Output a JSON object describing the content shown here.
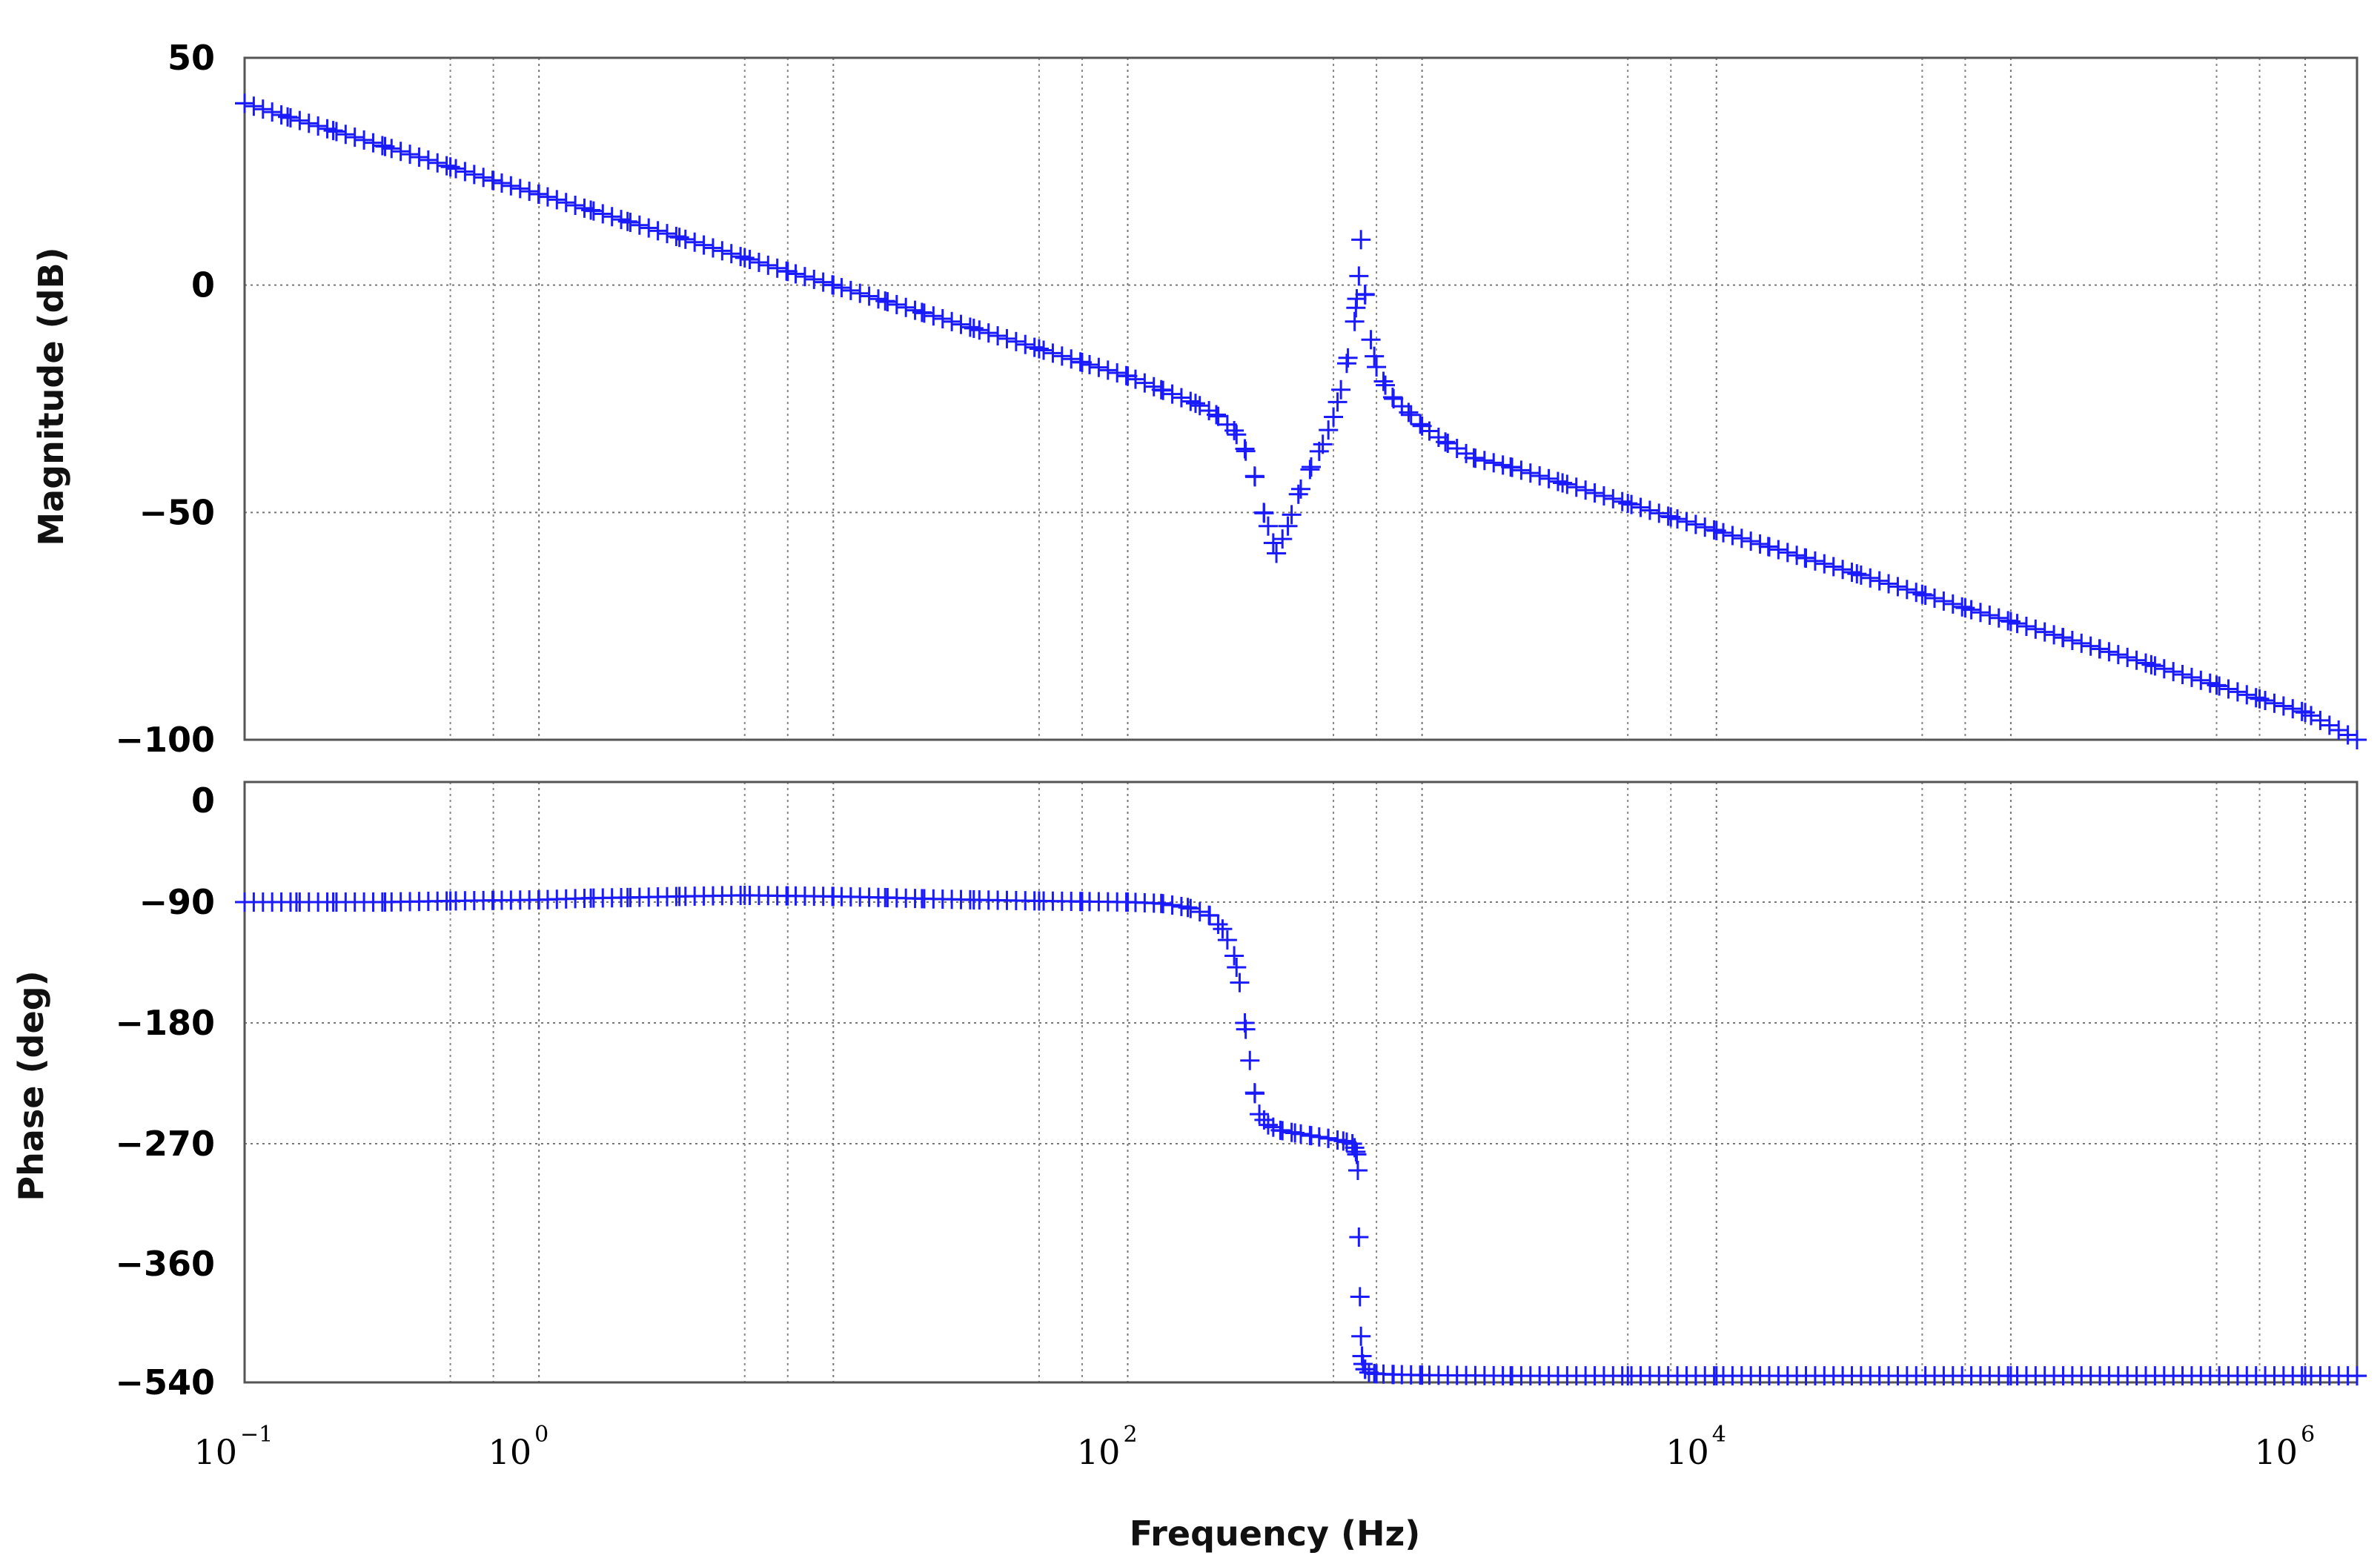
{
  "chart_data": [
    {
      "type": "scatter",
      "panel": "magnitude",
      "title": "",
      "xlabel": "",
      "ylabel": "Magnitude (dB)",
      "xscale": "log",
      "xlim": [
        0.1,
        1500000
      ],
      "ylim": [
        -100,
        50
      ],
      "yticks": [
        50,
        0,
        -50,
        -100
      ],
      "ytick_labels": [
        "50",
        "0",
        "−50",
        "−100"
      ],
      "ygrid": [
        0,
        -50,
        -100
      ],
      "grid": true,
      "marker": "+",
      "color": "#1a1aff",
      "series": [
        {
          "x": [
            0.1,
            0.14,
            0.2,
            0.3,
            0.5,
            0.7,
            1,
            1.5,
            2,
            3,
            5,
            7,
            10,
            15,
            20,
            30,
            50,
            70,
            100,
            130,
            170,
            200,
            230,
            250,
            270,
            290,
            300,
            320,
            350,
            380,
            420,
            460,
            500,
            530,
            560,
            590,
            600,
            610,
            620,
            640,
            670,
            700,
            750,
            800,
            900,
            1000,
            1200,
            1500,
            2000,
            3000,
            5000,
            7000,
            10000,
            15000,
            20000,
            30000,
            50000,
            70000,
            100000,
            150000,
            200000,
            300000,
            500000,
            700000,
            1000000,
            1500000
          ],
          "y": [
            40,
            37,
            34,
            30.5,
            26,
            23,
            20,
            16.5,
            14,
            10.5,
            6,
            3,
            0,
            -3.5,
            -6,
            -9.5,
            -14,
            -17,
            -20,
            -23,
            -26,
            -28.5,
            -32,
            -36,
            -42,
            -50,
            -53,
            -59,
            -53,
            -46,
            -40,
            -35,
            -29,
            -23,
            -16,
            -8,
            -3,
            2,
            10,
            -2,
            -12,
            -18,
            -22,
            -25,
            -28,
            -31,
            -34.5,
            -38,
            -40,
            -43.5,
            -48,
            -51,
            -54,
            -57.5,
            -60,
            -63.5,
            -68,
            -71,
            -74,
            -77.5,
            -80,
            -83.5,
            -88,
            -91,
            -94,
            -100
          ]
        }
      ]
    },
    {
      "type": "scatter",
      "panel": "phase",
      "title": "",
      "xlabel": "Frequency (Hz)",
      "ylabel": "Phase (deg)",
      "xscale": "log",
      "xlim": [
        0.1,
        1500000
      ],
      "ylim": [
        -540,
        0
      ],
      "ytick_values": [
        0,
        -90,
        -180,
        -270,
        -360,
        -540
      ],
      "ytick_labels": [
        "0",
        "−90",
        "−180",
        "−270",
        "−360",
        "−540"
      ],
      "ygrid": [
        -90,
        -180,
        -270,
        -540
      ],
      "xticks": [
        0.1,
        1,
        100,
        10000,
        1000000
      ],
      "xtick_labels": [
        {
          "base": "10",
          "exp": "−1"
        },
        {
          "base": "10",
          "exp": "0"
        },
        {
          "base": "10",
          "exp": "2"
        },
        {
          "base": "10",
          "exp": "4"
        },
        {
          "base": "10",
          "exp": "6"
        }
      ],
      "grid": true,
      "marker": "+",
      "color": "#1a1aff",
      "series": [
        {
          "x": [
            0.1,
            0.15,
            0.2,
            0.3,
            0.5,
            0.7,
            1,
            1.5,
            2,
            3,
            5,
            7,
            10,
            15,
            20,
            30,
            50,
            70,
            100,
            130,
            160,
            190,
            210,
            230,
            240,
            250,
            260,
            270,
            280,
            300,
            330,
            370,
            420,
            480,
            540,
            580,
            590,
            600,
            605,
            610,
            615,
            620,
            625,
            630,
            640,
            660,
            700,
            800,
            1000,
            2000,
            5000,
            10000,
            100000,
            1000000,
            1500000
          ],
          "y": [
            -90,
            -90,
            -90,
            -90,
            -89,
            -88.5,
            -88,
            -86.5,
            -86,
            -85,
            -84,
            -84.5,
            -85,
            -86,
            -87,
            -88,
            -89,
            -89.5,
            -90,
            -91,
            -94,
            -100,
            -110,
            -130,
            -150,
            -180,
            -208,
            -232,
            -248,
            -256,
            -260,
            -262,
            -264,
            -266,
            -268,
            -270,
            -273,
            -278,
            -290,
            -340,
            -410,
            -470,
            -500,
            -512,
            -520,
            -525,
            -527,
            -528,
            -529,
            -530,
            -530,
            -530,
            -530,
            -530,
            -530
          ]
        }
      ]
    }
  ]
}
